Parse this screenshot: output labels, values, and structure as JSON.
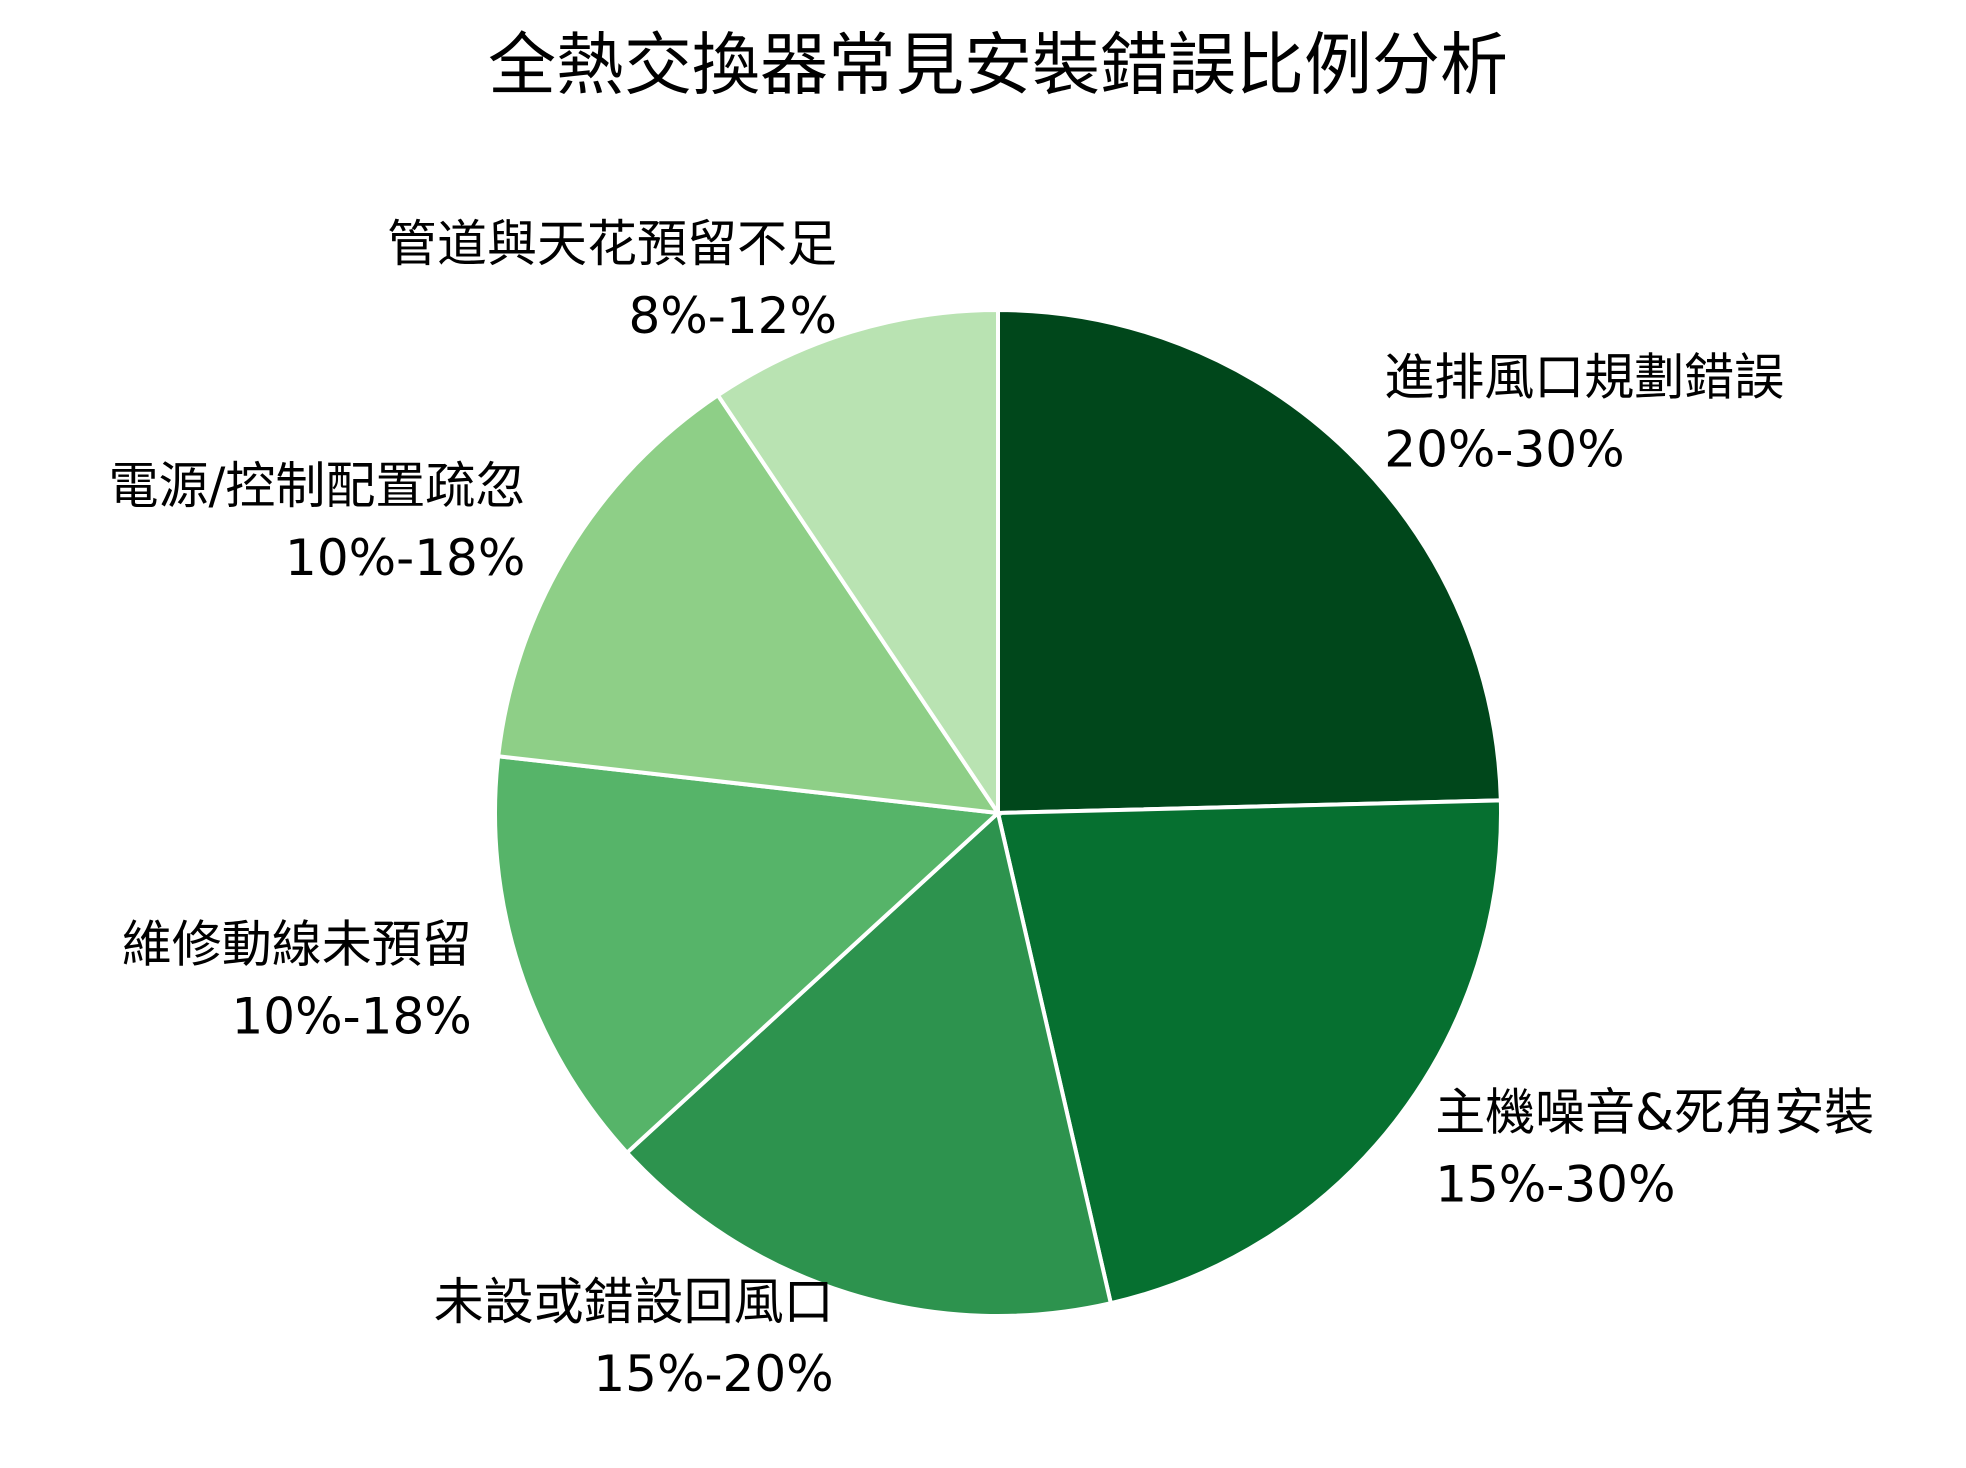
{
  "chart_data": {
    "type": "pie",
    "title": "全熱交換器常見安裝錯誤比例分析",
    "categories": [
      "進排風口規劃錯誤",
      "主機噪音&死角安裝",
      "未設或錯設回風口",
      "維修動線未預留",
      "電源/控制配置疏忽",
      "管道與天花預留不足"
    ],
    "ranges": [
      "20%-30%",
      "15%-30%",
      "15%-20%",
      "10%-18%",
      "10%-18%",
      "8%-12%"
    ],
    "values": [
      24.6,
      21.8,
      16.8,
      13.6,
      13.8,
      9.4
    ],
    "colors": [
      "#00471b",
      "#067030",
      "#2d934e",
      "#56b469",
      "#8ecf87",
      "#b9e3b2"
    ]
  }
}
